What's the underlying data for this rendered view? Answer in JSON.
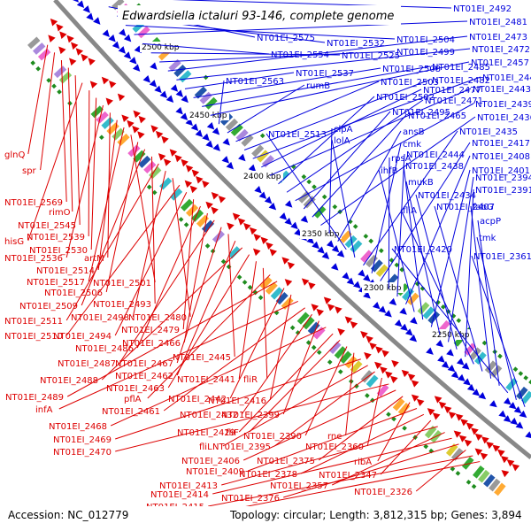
{
  "title": "Edwardsiella ictaluri 93-146, complete genome",
  "footer": {
    "accession": "Accession: NC_012779",
    "summary": "Topology: circular; Length: 3,812,315 bp; Genes: 3,894"
  },
  "ticks": [
    "2500 kbp",
    "2450 kbp",
    "2400 kbp",
    "2350 kbp",
    "2300 kbp",
    "2250 kbp"
  ],
  "colors": {
    "forward_strand": "#0000dd",
    "reverse_strand": "#dd0000",
    "backbone": "#888888",
    "tick_mark": "#1e8c1e"
  },
  "labels_forward": [
    "NT01EI_2492",
    "NT01EI_2575",
    "NT01EI_2532",
    "NT01EI_2504",
    "NT01EI_2481",
    "NT01EI_2554",
    "NT01EI_2525",
    "NT01EI_2499",
    "NT01EI_2473",
    "NT01EI_2472",
    "NT01EI_2537",
    "NT01EI_2508",
    "NT01EI_2485",
    "NT01EI_2457",
    "NT01EI_2563",
    "rumB",
    "NT01EI_2503",
    "NT01EI_2482",
    "NT01EI_2449",
    "NT01EI_2477",
    "NT01EI_2443",
    "NT01EI_2502",
    "NT01EI_2471",
    "NT01EI_2439",
    "NT01EI_2495",
    "NT01EI_2465",
    "NT01EI_2436",
    "clpA",
    "ansB",
    "NT01EI_2513",
    "lolA",
    "NT01EI_2435",
    "cmk",
    "NT01EI_2417",
    "rpsA",
    "NT01EI_2444",
    "NT01EI_2408",
    "ihfB",
    "NT01EI_2438",
    "NT01EI_2401",
    "mukB",
    "NT01EI_2394",
    "NT01EI_2434",
    "NT01EI_2391",
    "fliA",
    "NT01EI_2407",
    "fabG",
    "acpP",
    "NT01EI_2420",
    "tmk",
    "NT01EI_2361"
  ],
  "labels_reverse": [
    "glnQ",
    "spr",
    "NT01EI_2569",
    "rimO",
    "NT01EI_2545",
    "hisG",
    "NT01EI_2539",
    "NT01EI_2530",
    "NT01EI_2536",
    "artM",
    "NT01EI_2514",
    "NT01EI_2517",
    "NT01EI_2501",
    "NT01EI_2506",
    "NT01EI_2509",
    "NT01EI_2493",
    "NT01EI_2511",
    "NT01EI_2498",
    "NT01EI_2480",
    "NT01EI_2510",
    "NT01EI_2494",
    "NT01EI_2479",
    "NT01EI_2486",
    "NT01EI_2466",
    "NT01EI_2487",
    "NT01EI_2467",
    "NT01EI_2445",
    "NT01EI_2462",
    "NT01EI_2488",
    "NT01EI_2463",
    "NT01EI_2441",
    "fliR",
    "pflA",
    "NT01EI_2489",
    "NT01EI_2442",
    "NT01EI_2416",
    "infA",
    "NT01EI_2461",
    "NT01EI_2432",
    "NT01EI_2399",
    "NT01EI_2468",
    "NT01EI_2429",
    "fliF",
    "NT01EI_2390",
    "rne",
    "NT01EI_2469",
    "fliL",
    "NT01EI_2395",
    "NT01EI_2360",
    "NT01EI_2470",
    "NT01EI_2406",
    "NT01EI_2375",
    "ribA",
    "NT01EI_2409",
    "NT01EI_2378",
    "NT01EI_2347",
    "NT01EI_2413",
    "NT01EI_2357",
    "NT01EI_2414",
    "NT01EI_2376",
    "NT01EI_2326",
    "NT01EI_2415",
    "fliG"
  ]
}
